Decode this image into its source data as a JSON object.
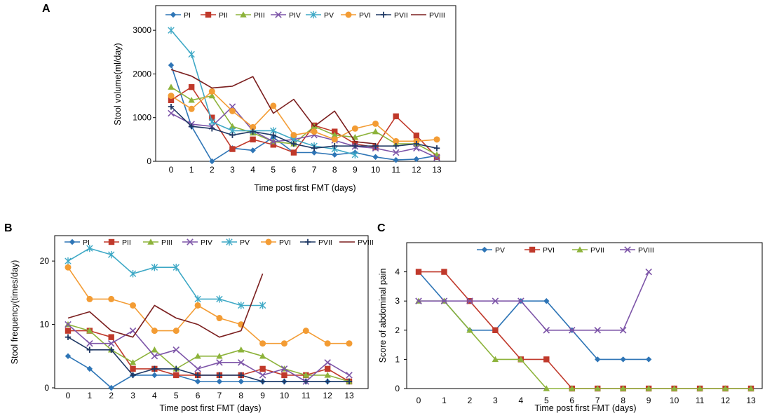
{
  "panels": [
    {
      "id": "A",
      "label": "A",
      "xlabel": "Time post first FMT (days)",
      "ylabel": "Stool volume(ml/day)",
      "xticks": [
        "0",
        "1",
        "2",
        "3",
        "4",
        "5",
        "6",
        "7",
        "8",
        "9",
        "10",
        "11",
        "12",
        "13"
      ],
      "yticks": [
        "0",
        "1000",
        "2000",
        "3000"
      ]
    },
    {
      "id": "B",
      "label": "B",
      "xlabel": "Time post first FMT (days)",
      "ylabel": "Stool frequency(times/day)",
      "xticks": [
        "0",
        "1",
        "2",
        "3",
        "4",
        "5",
        "6",
        "7",
        "8",
        "9",
        "10",
        "11",
        "12",
        "13"
      ],
      "yticks": [
        "0",
        "10",
        "20"
      ]
    },
    {
      "id": "C",
      "label": "C",
      "xlabel": "Time post first FMT (days)",
      "ylabel": "Score of abdominal pain",
      "xticks": [
        "0",
        "1",
        "2",
        "3",
        "4",
        "5",
        "6",
        "7",
        "8",
        "9",
        "10",
        "11",
        "12",
        "13"
      ],
      "yticks": [
        "0",
        "1",
        "2",
        "3",
        "4"
      ]
    }
  ],
  "chart_data": [
    {
      "panel": "A",
      "type": "line",
      "title": "",
      "xlabel": "Time post first FMT (days)",
      "ylabel": "Stool volume(ml/day)",
      "x": [
        0,
        1,
        2,
        3,
        4,
        5,
        6,
        7,
        8,
        9,
        10,
        11,
        12,
        13
      ],
      "xlim": [
        0,
        13
      ],
      "ylim": [
        0,
        3500
      ],
      "legend": "top",
      "series": [
        {
          "name": "PI",
          "color": "#2e75b6",
          "marker": "diamond",
          "values": [
            2200,
            800,
            0,
            300,
            250,
            550,
            200,
            200,
            150,
            200,
            100,
            30,
            50,
            130
          ]
        },
        {
          "name": "PII",
          "color": "#c0392b",
          "marker": "square",
          "values": [
            1400,
            1700,
            1000,
            280,
            500,
            380,
            200,
            820,
            680,
            400,
            320,
            1030,
            590,
            100
          ]
        },
        {
          "name": "PIII",
          "color": "#8db33b",
          "marker": "triangle",
          "values": [
            1700,
            1400,
            1500,
            800,
            650,
            450,
            400,
            800,
            600,
            550,
            680,
            400,
            400,
            150
          ]
        },
        {
          "name": "PIV",
          "color": "#7d55a8",
          "marker": "x",
          "values": [
            1100,
            850,
            800,
            1250,
            700,
            450,
            500,
            600,
            480,
            340,
            300,
            200,
            300,
            80
          ]
        },
        {
          "name": "PV",
          "color": "#3fa9c6",
          "marker": "star",
          "values": [
            3000,
            2450,
            900,
            700,
            700,
            700,
            500,
            350,
            280,
            150,
            null,
            null,
            null,
            null
          ]
        },
        {
          "name": "PVI",
          "color": "#f39c34",
          "marker": "circle",
          "values": [
            1500,
            1200,
            1600,
            1150,
            780,
            1270,
            600,
            680,
            500,
            750,
            860,
            460,
            460,
            500
          ]
        },
        {
          "name": "PVII",
          "color": "#1f3864",
          "marker": "plus",
          "values": [
            1250,
            800,
            750,
            600,
            680,
            600,
            400,
            300,
            350,
            350,
            350,
            350,
            400,
            300
          ]
        },
        {
          "name": "PVIII",
          "color": "#7b1f1f",
          "marker": "dash",
          "values": [
            2100,
            1950,
            1680,
            1720,
            1940,
            1100,
            1420,
            800,
            1150,
            450,
            400,
            null,
            null,
            null
          ]
        }
      ]
    },
    {
      "panel": "B",
      "type": "line",
      "title": "",
      "xlabel": "Time post first FMT (days)",
      "ylabel": "Stool frequency(times/day)",
      "x": [
        0,
        1,
        2,
        3,
        4,
        5,
        6,
        7,
        8,
        9,
        10,
        11,
        12,
        13
      ],
      "xlim": [
        0,
        13
      ],
      "ylim": [
        0,
        24
      ],
      "legend": "top",
      "series": [
        {
          "name": "PI",
          "color": "#2e75b6",
          "marker": "diamond",
          "values": [
            5,
            3,
            0,
            2,
            2,
            2,
            1,
            1,
            1,
            1,
            1,
            1,
            1,
            1
          ]
        },
        {
          "name": "PII",
          "color": "#c0392b",
          "marker": "square",
          "values": [
            9,
            9,
            8,
            3,
            3,
            2,
            2,
            2,
            2,
            3,
            2,
            2,
            3,
            1
          ]
        },
        {
          "name": "PIII",
          "color": "#8db33b",
          "marker": "triangle",
          "values": [
            10,
            9,
            6,
            4,
            6,
            3,
            5,
            5,
            6,
            5,
            3,
            2,
            2,
            1
          ]
        },
        {
          "name": "PIV",
          "color": "#7d55a8",
          "marker": "x",
          "values": [
            10,
            7,
            7,
            9,
            5,
            6,
            3,
            4,
            4,
            2,
            3,
            1,
            4,
            2
          ]
        },
        {
          "name": "PV",
          "color": "#3fa9c6",
          "marker": "star",
          "values": [
            20,
            22,
            21,
            18,
            19,
            19,
            14,
            14,
            13,
            13,
            null,
            null,
            null,
            null
          ]
        },
        {
          "name": "PVI",
          "color": "#f39c34",
          "marker": "circle",
          "values": [
            19,
            14,
            14,
            13,
            9,
            9,
            13,
            11,
            10,
            7,
            7,
            9,
            7,
            7
          ]
        },
        {
          "name": "PVII",
          "color": "#1f3864",
          "marker": "plus",
          "values": [
            8,
            6,
            6,
            2,
            3,
            3,
            2,
            2,
            2,
            1,
            1,
            1,
            1,
            1
          ]
        },
        {
          "name": "PVIII",
          "color": "#7b1f1f",
          "marker": "dash",
          "values": [
            11,
            12,
            9,
            8,
            13,
            11,
            10,
            8,
            9,
            18,
            null,
            null,
            null,
            null
          ]
        }
      ]
    },
    {
      "panel": "C",
      "type": "line",
      "title": "",
      "xlabel": "Time post first FMT (days)",
      "ylabel": "Score of abdominal pain",
      "x": [
        0,
        1,
        2,
        3,
        4,
        5,
        6,
        7,
        8,
        9,
        10,
        11,
        12,
        13
      ],
      "xlim": [
        0,
        13
      ],
      "ylim": [
        0,
        5
      ],
      "legend": "top",
      "series": [
        {
          "name": "PV",
          "color": "#2e75b6",
          "marker": "diamond",
          "values": [
            4,
            3,
            2,
            2,
            3,
            3,
            2,
            1,
            1,
            1,
            null,
            null,
            null,
            null
          ]
        },
        {
          "name": "PVI",
          "color": "#c0392b",
          "marker": "square",
          "values": [
            4,
            4,
            3,
            2,
            1,
            1,
            0,
            0,
            0,
            0,
            0,
            0,
            0,
            0
          ]
        },
        {
          "name": "PVII",
          "color": "#8db33b",
          "marker": "triangle",
          "values": [
            3,
            3,
            2,
            1,
            1,
            0,
            0,
            0,
            0,
            0,
            0,
            0,
            0,
            0
          ]
        },
        {
          "name": "PVIII",
          "color": "#7d55a8",
          "marker": "x",
          "values": [
            3,
            3,
            3,
            3,
            3,
            2,
            2,
            2,
            2,
            4,
            null,
            null,
            null,
            null
          ]
        }
      ]
    }
  ]
}
